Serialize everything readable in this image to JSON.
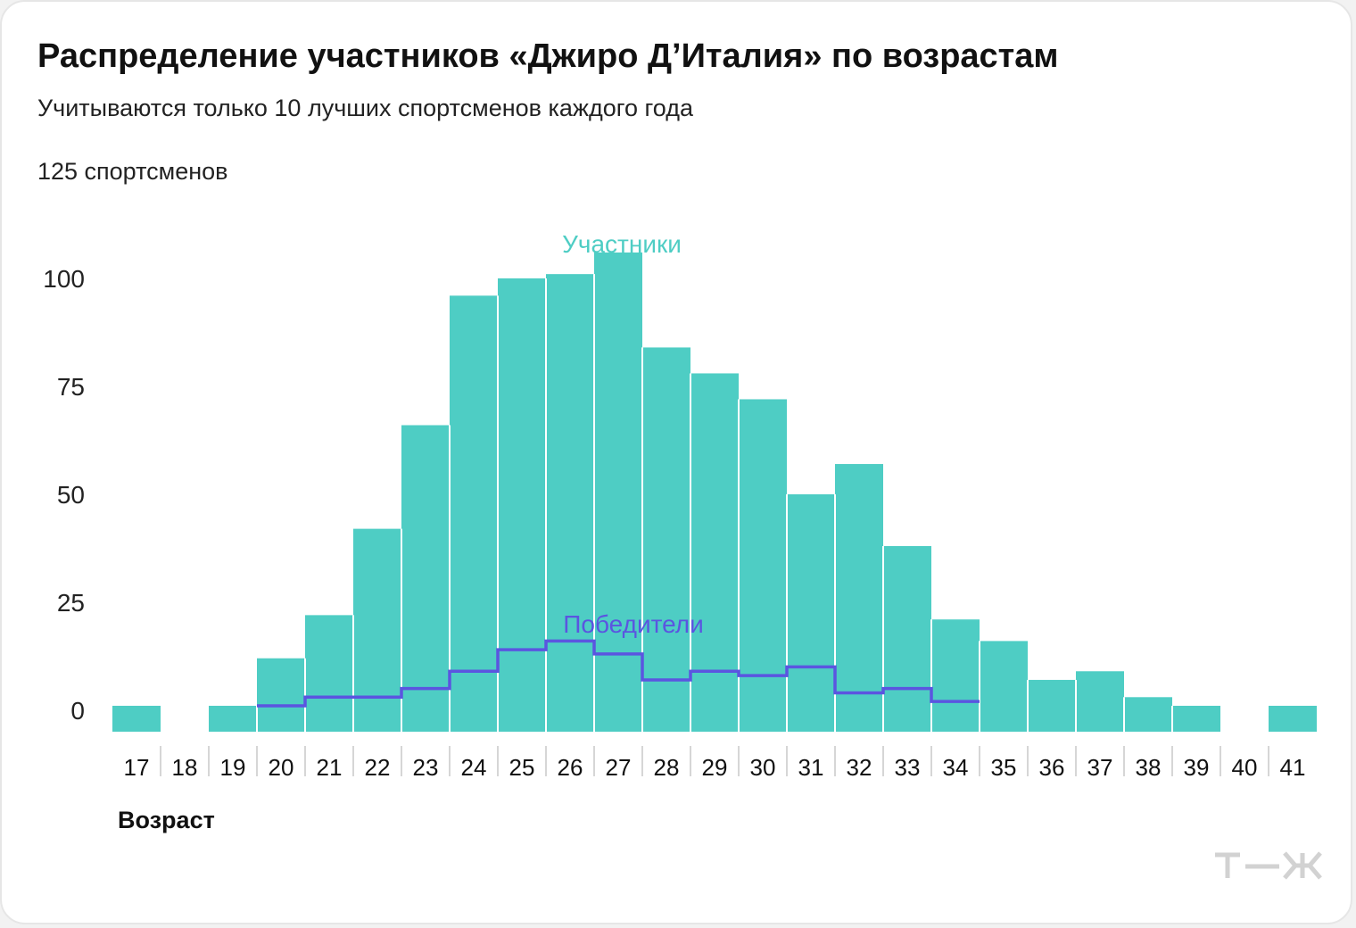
{
  "header": {
    "title": "Распределение участников «Джиро Д’Италия» по возрастам",
    "subtitle": "Учитываются только 10 лучших спортсменов каждого года",
    "unit_label": "125 спортсменов"
  },
  "brand": {
    "logo": "т—ж logo"
  },
  "chart_data": {
    "type": "bar",
    "xlabel": "Возраст",
    "ylabel": "",
    "ylim": [
      -5,
      100
    ],
    "yticks": [
      0,
      25,
      50,
      75,
      100
    ],
    "grid": false,
    "categories": [
      "17",
      "18",
      "19",
      "20",
      "21",
      "22",
      "23",
      "24",
      "25",
      "26",
      "27",
      "28",
      "29",
      "30",
      "31",
      "32",
      "33",
      "34",
      "35",
      "36",
      "37",
      "38",
      "39",
      "40",
      "41"
    ],
    "series": [
      {
        "name": "Участники",
        "style": "bars",
        "color": "#4ecdc4",
        "values": [
          1,
          0,
          1,
          12,
          22,
          42,
          66,
          96,
          100,
          101,
          106,
          84,
          78,
          72,
          50,
          57,
          38,
          21,
          16,
          7,
          9,
          3,
          1,
          0,
          1
        ]
      },
      {
        "name": "Победители",
        "style": "step",
        "color": "#5b55e0",
        "values": [
          null,
          null,
          null,
          1,
          3,
          3,
          5,
          9,
          14,
          16,
          13,
          7,
          9,
          8,
          10,
          4,
          5,
          2,
          null,
          null,
          null,
          null,
          null,
          null,
          null
        ]
      }
    ]
  }
}
